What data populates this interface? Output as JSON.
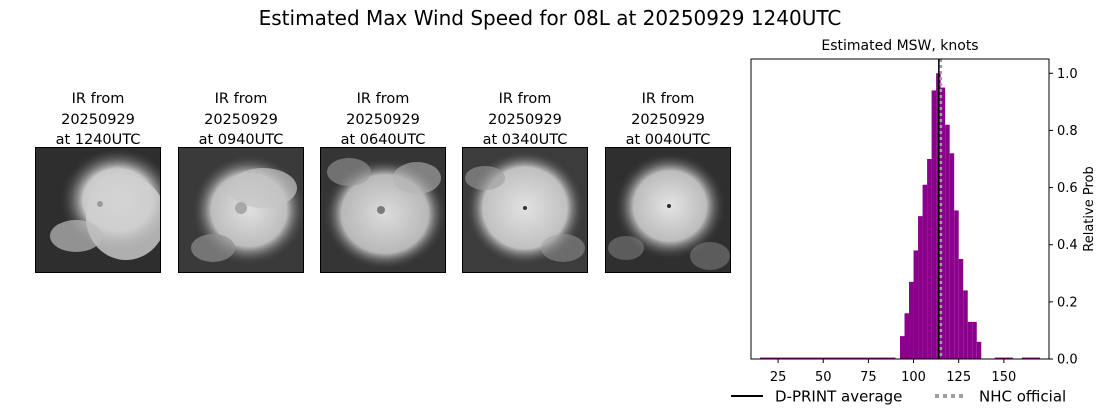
{
  "title": "Estimated Max Wind Speed for 08L at 20250929 1240UTC",
  "ir_panels": [
    {
      "line1": "IR from",
      "line2": "20250929",
      "line3": "at 1240UTC"
    },
    {
      "line1": "IR from",
      "line2": "20250929",
      "line3": "at 0940UTC"
    },
    {
      "line1": "IR from",
      "line2": "20250929",
      "line3": "at 0640UTC"
    },
    {
      "line1": "IR from",
      "line2": "20250929",
      "line3": "at 0340UTC"
    },
    {
      "line1": "IR from",
      "line2": "20250929",
      "line3": "at 0040UTC"
    }
  ],
  "chart_data": {
    "type": "bar",
    "title": "Estimated MSW, knots",
    "xlabel": "",
    "ylabel": "Relative Prob",
    "xlim": [
      10,
      175
    ],
    "ylim": [
      0,
      1.05
    ],
    "xticks": [
      25,
      50,
      75,
      100,
      125,
      150
    ],
    "yticks": [
      0.0,
      0.2,
      0.4,
      0.6,
      0.8,
      1.0
    ],
    "ytick_labels": [
      "0.0",
      "0.2",
      "0.4",
      "0.6",
      "0.8",
      "1.0"
    ],
    "bar_color": "#8b008b",
    "bins": [
      {
        "x": 40,
        "w": 50,
        "y": 0.005
      },
      {
        "x": 67.5,
        "w": 5,
        "y": 0.005
      },
      {
        "x": 72.5,
        "w": 5,
        "y": 0.005
      },
      {
        "x": 77.5,
        "w": 5,
        "y": 0.005
      },
      {
        "x": 82.5,
        "w": 5,
        "y": 0.005
      },
      {
        "x": 87.5,
        "w": 5,
        "y": 0.005
      },
      {
        "x": 93.75,
        "w": 2.5,
        "y": 0.08
      },
      {
        "x": 96.25,
        "w": 2.5,
        "y": 0.16
      },
      {
        "x": 98.75,
        "w": 2.5,
        "y": 0.27
      },
      {
        "x": 101.25,
        "w": 2.5,
        "y": 0.38
      },
      {
        "x": 103.75,
        "w": 2.5,
        "y": 0.5
      },
      {
        "x": 106.25,
        "w": 2.5,
        "y": 0.61
      },
      {
        "x": 108.75,
        "w": 2.5,
        "y": 0.7
      },
      {
        "x": 111.25,
        "w": 2.5,
        "y": 0.94
      },
      {
        "x": 113.75,
        "w": 2.5,
        "y": 1.0
      },
      {
        "x": 116.25,
        "w": 2.5,
        "y": 0.95
      },
      {
        "x": 118.75,
        "w": 2.5,
        "y": 0.82
      },
      {
        "x": 121.25,
        "w": 2.5,
        "y": 0.72
      },
      {
        "x": 123.75,
        "w": 2.5,
        "y": 0.52
      },
      {
        "x": 126.25,
        "w": 2.5,
        "y": 0.35
      },
      {
        "x": 128.75,
        "w": 2.5,
        "y": 0.24
      },
      {
        "x": 131.25,
        "w": 2.5,
        "y": 0.13
      },
      {
        "x": 133.75,
        "w": 2.5,
        "y": 0.13
      },
      {
        "x": 136.25,
        "w": 2.5,
        "y": 0.06
      },
      {
        "x": 148,
        "w": 6,
        "y": 0.005
      },
      {
        "x": 153,
        "w": 4,
        "y": 0.005
      },
      {
        "x": 165,
        "w": 10,
        "y": 0.005
      }
    ],
    "dprint_average": 114,
    "nhc_official": 115,
    "legend": [
      {
        "label": "D-PRINT average",
        "color": "#000000",
        "style": "solid"
      },
      {
        "label": "NHC official",
        "color": "#a0a0a0",
        "style": "dotted"
      }
    ],
    "legend_position": "bottom"
  }
}
